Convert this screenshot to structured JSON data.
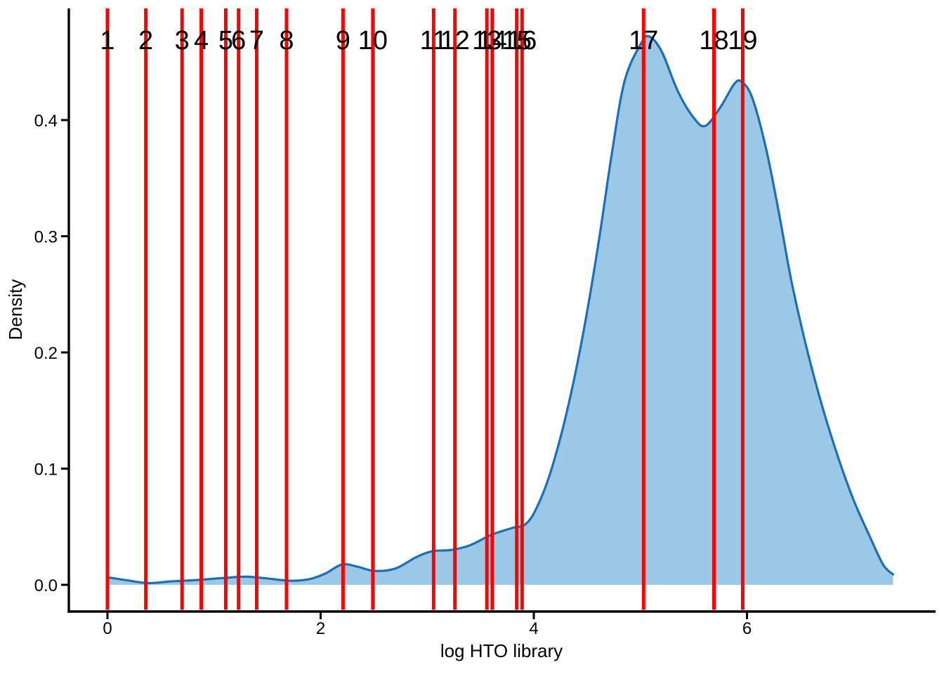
{
  "figure": {
    "background": "#FFFFFF"
  },
  "chart_data": {
    "type": "area",
    "title": "",
    "xlabel": "log HTO library",
    "ylabel": "Density",
    "grid": false,
    "legend": null,
    "x_axis": {
      "tick_values": [
        0,
        2,
        4,
        6
      ],
      "tick_labels": [
        "0",
        "2",
        "4",
        "6"
      ],
      "range": [
        -0.36,
        7.85
      ]
    },
    "y_axis": {
      "tick_values": [
        0,
        0.1,
        0.2,
        0.3,
        0.4
      ],
      "tick_labels": [
        "0.0",
        "0.1",
        "0.2",
        "0.3",
        "0.4"
      ],
      "range": [
        -0.022,
        0.497
      ]
    },
    "series": [
      {
        "name": "density of log HTO library",
        "type": "area",
        "points": [
          [
            0.0,
            0.0065
          ],
          [
            0.18,
            0.004
          ],
          [
            0.38,
            0.0015
          ],
          [
            0.6,
            0.003
          ],
          [
            0.85,
            0.0042
          ],
          [
            1.1,
            0.006
          ],
          [
            1.3,
            0.007
          ],
          [
            1.5,
            0.0055
          ],
          [
            1.72,
            0.0035
          ],
          [
            1.9,
            0.005
          ],
          [
            2.05,
            0.01
          ],
          [
            2.2,
            0.0175
          ],
          [
            2.35,
            0.0155
          ],
          [
            2.5,
            0.012
          ],
          [
            2.7,
            0.014
          ],
          [
            2.9,
            0.024
          ],
          [
            3.05,
            0.029
          ],
          [
            3.22,
            0.03
          ],
          [
            3.4,
            0.034
          ],
          [
            3.6,
            0.043
          ],
          [
            3.8,
            0.049
          ],
          [
            3.92,
            0.052
          ],
          [
            4.02,
            0.065
          ],
          [
            4.15,
            0.095
          ],
          [
            4.3,
            0.145
          ],
          [
            4.45,
            0.21
          ],
          [
            4.6,
            0.29
          ],
          [
            4.73,
            0.37
          ],
          [
            4.85,
            0.433
          ],
          [
            5.0,
            0.465
          ],
          [
            5.08,
            0.472
          ],
          [
            5.2,
            0.459
          ],
          [
            5.35,
            0.425
          ],
          [
            5.5,
            0.402
          ],
          [
            5.61,
            0.395
          ],
          [
            5.75,
            0.411
          ],
          [
            5.88,
            0.431
          ],
          [
            5.95,
            0.433
          ],
          [
            6.05,
            0.419
          ],
          [
            6.18,
            0.375
          ],
          [
            6.3,
            0.32
          ],
          [
            6.42,
            0.26
          ],
          [
            6.57,
            0.2
          ],
          [
            6.75,
            0.14
          ],
          [
            6.97,
            0.08
          ],
          [
            7.16,
            0.04
          ],
          [
            7.28,
            0.017
          ],
          [
            7.37,
            0.009
          ]
        ]
      }
    ],
    "vlines": [
      {
        "label": "1",
        "x": 0.0
      },
      {
        "label": "2",
        "x": 0.36
      },
      {
        "label": "3",
        "x": 0.7
      },
      {
        "label": "4",
        "x": 0.88
      },
      {
        "label": "5",
        "x": 1.11
      },
      {
        "label": "6",
        "x": 1.23
      },
      {
        "label": "7",
        "x": 1.4
      },
      {
        "label": "8",
        "x": 1.68
      },
      {
        "label": "9",
        "x": 2.21
      },
      {
        "label": "10",
        "x": 2.49
      },
      {
        "label": "11",
        "x": 3.06
      },
      {
        "label": "12",
        "x": 3.26
      },
      {
        "label": "13",
        "x": 3.56
      },
      {
        "label": "14",
        "x": 3.61
      },
      {
        "label": "15",
        "x": 3.84
      },
      {
        "label": "16",
        "x": 3.89
      },
      {
        "label": "17",
        "x": 5.03
      },
      {
        "label": "18",
        "x": 5.69
      },
      {
        "label": "19",
        "x": 5.96
      }
    ],
    "colors": {
      "density_fill": "#9CC8E8",
      "density_stroke": "#1A6FB5",
      "vline": "#FB0300",
      "axis": "#000000",
      "text": "#000000"
    }
  }
}
